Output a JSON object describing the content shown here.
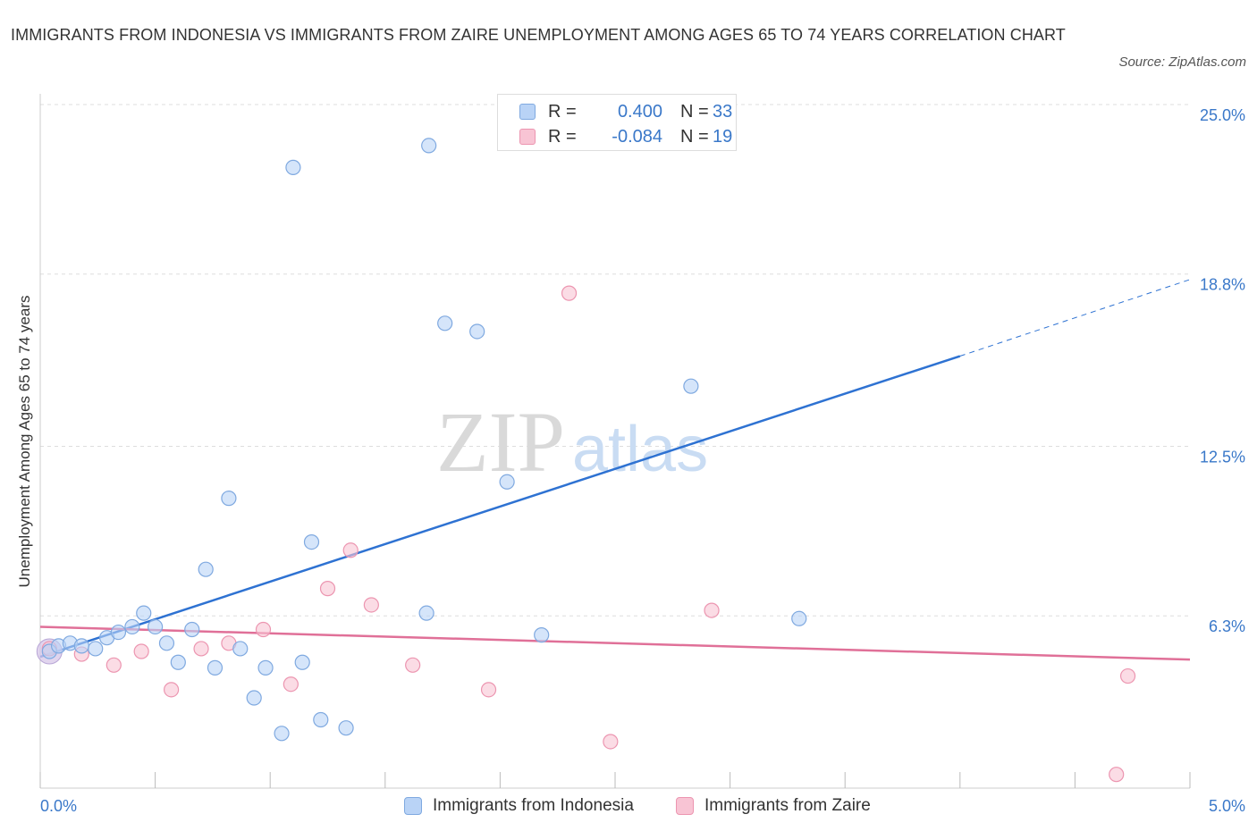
{
  "title": "IMMIGRANTS FROM INDONESIA VS IMMIGRANTS FROM ZAIRE UNEMPLOYMENT AMONG AGES 65 TO 74 YEARS CORRELATION CHART",
  "source": "Source: ZipAtlas.com",
  "watermark": {
    "zip": "ZIP",
    "atlas": "atlas"
  },
  "stats": [
    {
      "r_label": "R =",
      "r_value": "0.400",
      "n_label": "N =",
      "n_value": "33",
      "color": "#b9d3f6"
    },
    {
      "r_label": "R =",
      "r_value": "-0.084",
      "n_label": "N =",
      "n_value": "19",
      "color": "#f8c4d4"
    }
  ],
  "legend": [
    {
      "label": "Immigrants from Indonesia",
      "color": "#b9d3f6"
    },
    {
      "label": "Immigrants from Zaire",
      "color": "#f8c4d4"
    }
  ],
  "colors": {
    "indonesia_fill": "#b9d3f6",
    "indonesia_stroke": "#7fa9e0",
    "indonesia_line": "#2e72d2",
    "zaire_fill": "#f8c4d4",
    "zaire_stroke": "#ec95b0",
    "zaire_line": "#e07098",
    "axis_label": "#3a78c9",
    "grid": "#dddddd"
  },
  "chart_data": {
    "type": "scatter",
    "title": "IMMIGRANTS FROM INDONESIA VS IMMIGRANTS FROM ZAIRE UNEMPLOYMENT AMONG AGES 65 TO 74 YEARS CORRELATION CHART",
    "xlabel": "",
    "ylabel": "Unemployment Among Ages 65 to 74 years",
    "xlim": [
      0,
      5
    ],
    "ylim": [
      0,
      25
    ],
    "x_tick_labels": [
      "0.0%",
      "5.0%"
    ],
    "y_ticks": [
      6.3,
      12.5,
      18.8,
      25.0
    ],
    "y_tick_labels": [
      "6.3%",
      "12.5%",
      "18.8%",
      "25.0%"
    ],
    "grid": "horizontal dashed",
    "legend_position": "bottom-center",
    "series": [
      {
        "name": "Immigrants from Indonesia",
        "points": [
          [
            0.04,
            5.0
          ],
          [
            0.08,
            5.2
          ],
          [
            0.13,
            5.3
          ],
          [
            0.18,
            5.2
          ],
          [
            0.24,
            5.1
          ],
          [
            0.29,
            5.5
          ],
          [
            0.34,
            5.7
          ],
          [
            0.4,
            5.9
          ],
          [
            0.45,
            6.4
          ],
          [
            0.5,
            5.9
          ],
          [
            0.55,
            5.3
          ],
          [
            0.6,
            4.6
          ],
          [
            0.66,
            5.8
          ],
          [
            0.72,
            8.0
          ],
          [
            0.76,
            4.4
          ],
          [
            0.82,
            10.6
          ],
          [
            0.87,
            5.1
          ],
          [
            0.93,
            3.3
          ],
          [
            0.98,
            4.4
          ],
          [
            1.05,
            2.0
          ],
          [
            1.14,
            4.6
          ],
          [
            1.18,
            9.0
          ],
          [
            1.22,
            2.5
          ],
          [
            1.33,
            2.2
          ],
          [
            1.1,
            22.7
          ],
          [
            1.69,
            23.5
          ],
          [
            1.76,
            17.0
          ],
          [
            1.9,
            16.7
          ],
          [
            1.68,
            6.4
          ],
          [
            2.03,
            11.2
          ],
          [
            2.18,
            5.6
          ],
          [
            2.83,
            14.7
          ],
          [
            3.3,
            6.2
          ]
        ],
        "trend": {
          "x": [
            0.0,
            4.0
          ],
          "y": [
            4.8,
            15.8
          ],
          "dashed_extension": {
            "x": [
              4.0,
              5.0
            ],
            "y": [
              15.8,
              18.6
            ]
          }
        }
      },
      {
        "name": "Immigrants from Zaire",
        "points": [
          [
            0.04,
            5.1
          ],
          [
            0.18,
            4.9
          ],
          [
            0.32,
            4.5
          ],
          [
            0.44,
            5.0
          ],
          [
            0.57,
            3.6
          ],
          [
            0.7,
            5.1
          ],
          [
            0.82,
            5.3
          ],
          [
            0.97,
            5.8
          ],
          [
            1.09,
            3.8
          ],
          [
            1.25,
            7.3
          ],
          [
            1.35,
            8.7
          ],
          [
            1.44,
            6.7
          ],
          [
            1.62,
            4.5
          ],
          [
            1.95,
            3.6
          ],
          [
            2.3,
            18.1
          ],
          [
            2.48,
            1.7
          ],
          [
            2.92,
            6.5
          ],
          [
            4.73,
            4.1
          ],
          [
            4.68,
            0.5
          ]
        ],
        "trend": {
          "x": [
            0.0,
            5.0
          ],
          "y": [
            5.9,
            4.7
          ]
        }
      }
    ]
  }
}
